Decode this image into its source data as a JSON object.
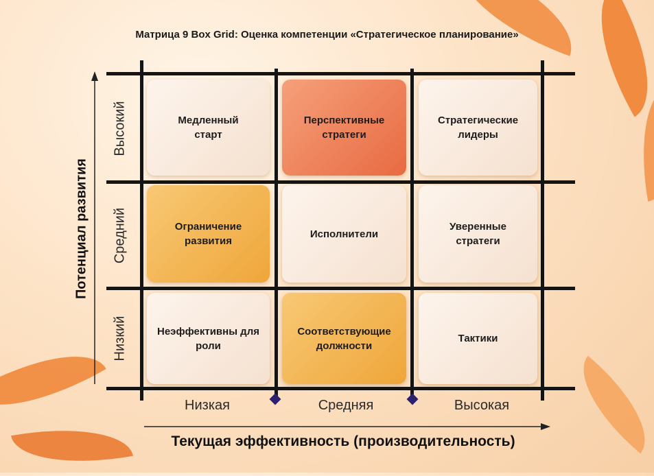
{
  "title": "Матрица 9 Box Grid: Оценка компетенции «Стратегическое планирование»",
  "y_axis": {
    "title": "Потенциал развития",
    "levels": [
      "Высокий",
      "Средний",
      "Низкий"
    ]
  },
  "x_axis": {
    "title": "Текущая эффективность (производительность)",
    "levels": [
      "Низкая",
      "Средняя",
      "Высокая"
    ]
  },
  "cells": [
    [
      "Медленный старт",
      "Перспективные стратеги",
      "Стратегические лидеры"
    ],
    [
      "Ограничение развития",
      "Исполнители",
      "Уверенные стратеги"
    ],
    [
      "Неэффективны для роли",
      "Соответствующие должности",
      "Тактики"
    ]
  ],
  "colors": {
    "light": "#f8e9dc",
    "orange": "#ec7a52",
    "yellow": "#f2b04a",
    "lines": "#141414"
  }
}
